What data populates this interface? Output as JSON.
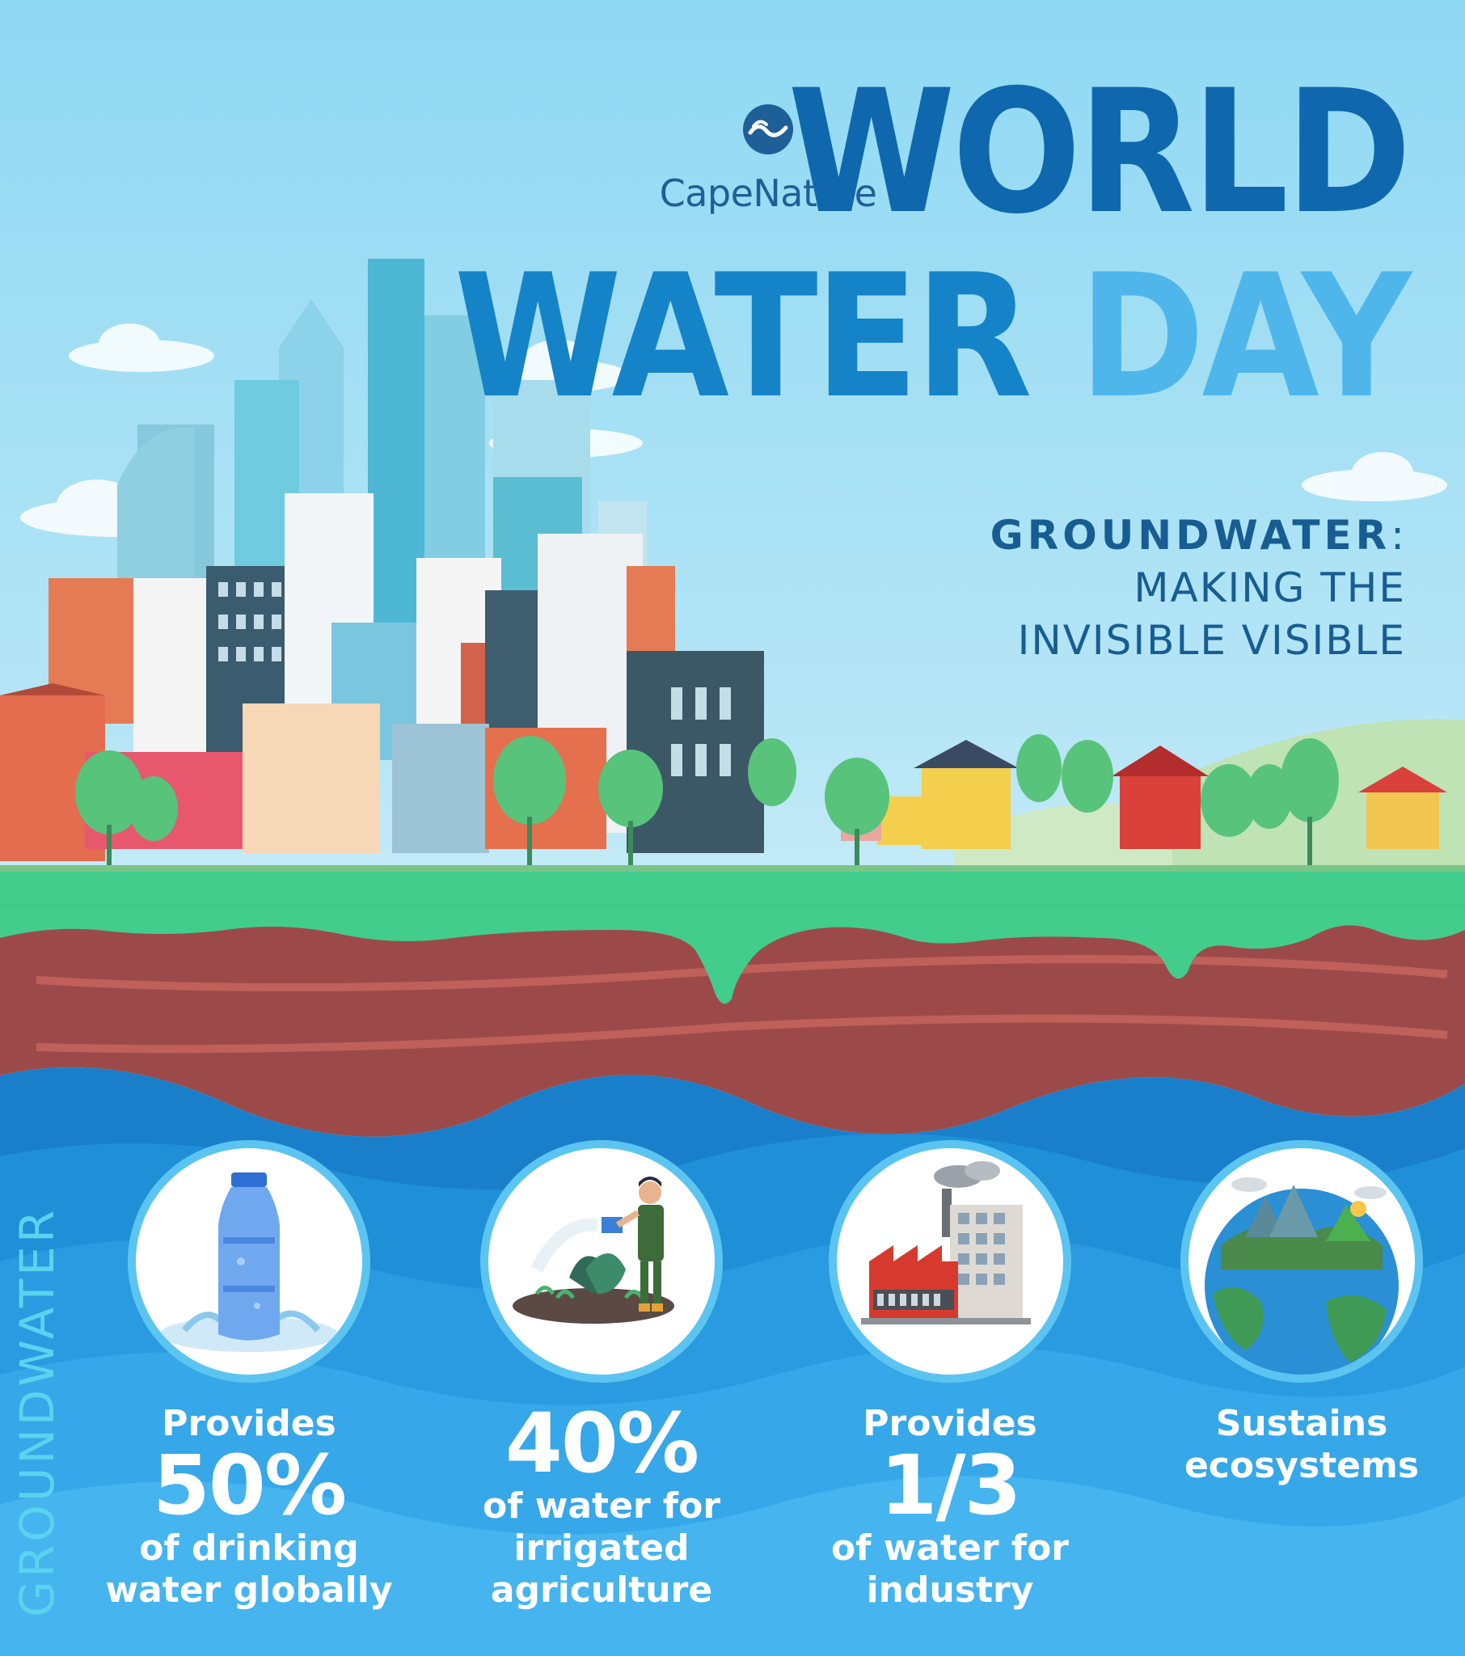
{
  "brand": {
    "name": "CapeNature",
    "icon": "capenature-wave-logo-icon"
  },
  "title": {
    "line1": "WORLD",
    "line2a": "WATER",
    "line2b": "DAY"
  },
  "subtitle": {
    "strong": "GROUNDWATER",
    "colon": ":",
    "line2": "MAKING THE",
    "line3": "INVISIBLE VISIBLE"
  },
  "side_label": "GROUNDWATER",
  "colors": {
    "title_dark": "#0f68ad",
    "title_mid": "#1583c8",
    "title_light": "#4fb6ec",
    "grass": "#42cd8c",
    "soil": "#9c4a49",
    "water": "#1a86d2"
  },
  "stats": [
    {
      "icon": "water-bottle-icon",
      "pre": "Provides",
      "value": "50%",
      "post1": "of drinking",
      "post2": "water globally"
    },
    {
      "icon": "farmer-watering-plants-icon",
      "pre": "",
      "value": "40%",
      "post1": "of water for",
      "post2": "irrigated",
      "post3": "agriculture"
    },
    {
      "icon": "factory-icon",
      "pre": "Provides",
      "value": "1/3",
      "post1": "of water for",
      "post2": "industry"
    },
    {
      "icon": "earth-ecosystem-icon",
      "pre": "Sustains",
      "value": "",
      "post1": "ecosystems",
      "post2": ""
    }
  ]
}
